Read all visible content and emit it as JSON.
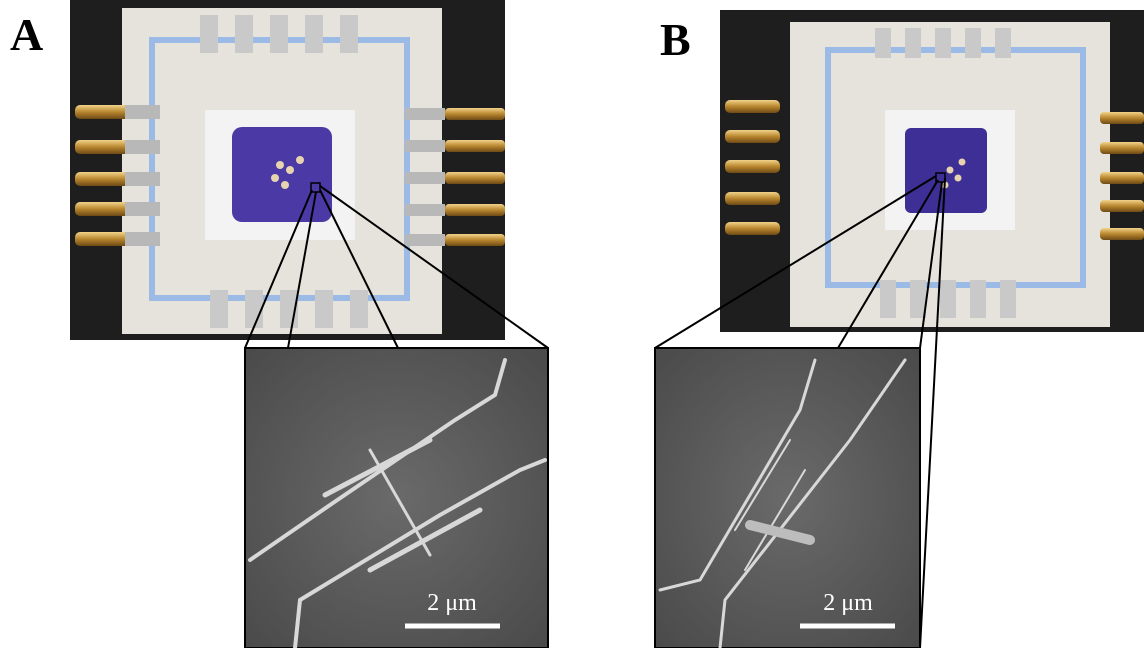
{
  "panels": [
    {
      "label": "A",
      "scale_bar": "2 μm"
    },
    {
      "label": "B",
      "scale_bar": "2 μm"
    }
  ]
}
